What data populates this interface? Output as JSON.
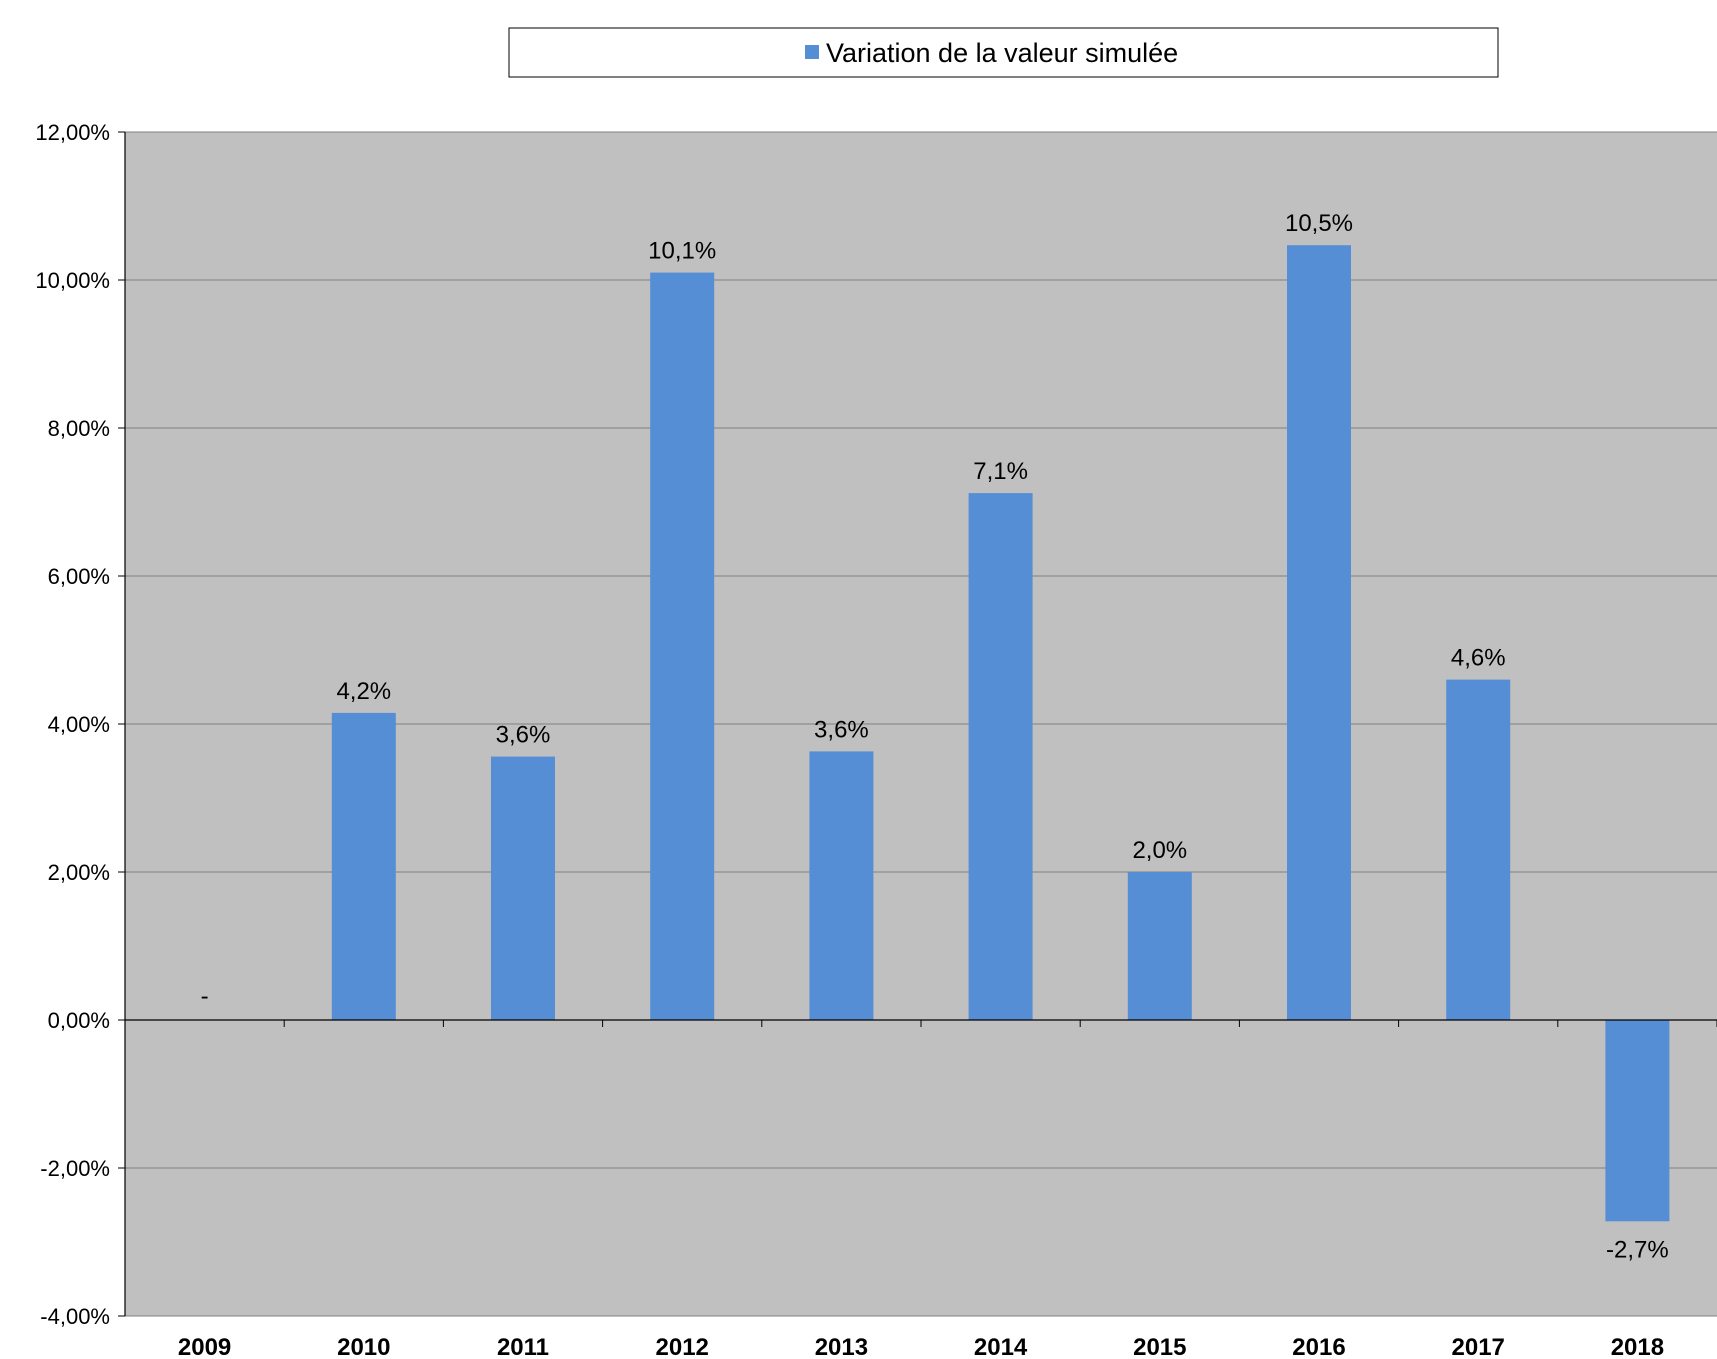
{
  "chart_data": {
    "type": "bar",
    "categories": [
      "2009",
      "2010",
      "2011",
      "2012",
      "2013",
      "2014",
      "2015",
      "2016",
      "2017",
      "2018"
    ],
    "series": [
      {
        "name": "Variation de la valeur simulée",
        "values": [
          0.0,
          4.15,
          3.56,
          10.1,
          3.63,
          7.12,
          2.0,
          10.47,
          4.6,
          -2.72
        ],
        "data_labels": [
          "-",
          "4,2%",
          "3,6%",
          "10,1%",
          "3,6%",
          "7,1%",
          "2,0%",
          "10,5%",
          "4,6%",
          "-2,7%"
        ],
        "color": "#558ED5"
      }
    ],
    "y_ticks": [
      "-4,00%",
      "-2,00%",
      "0,00%",
      "2,00%",
      "4,00%",
      "6,00%",
      "8,00%",
      "10,00%",
      "12,00%"
    ],
    "ylim": [
      -4,
      12
    ],
    "y_step": 2,
    "grid": true,
    "legend_position": "top",
    "colors": {
      "plot_background": "#C0C0C0",
      "gridline": "#808080",
      "negative_label": "#FF0000"
    }
  }
}
